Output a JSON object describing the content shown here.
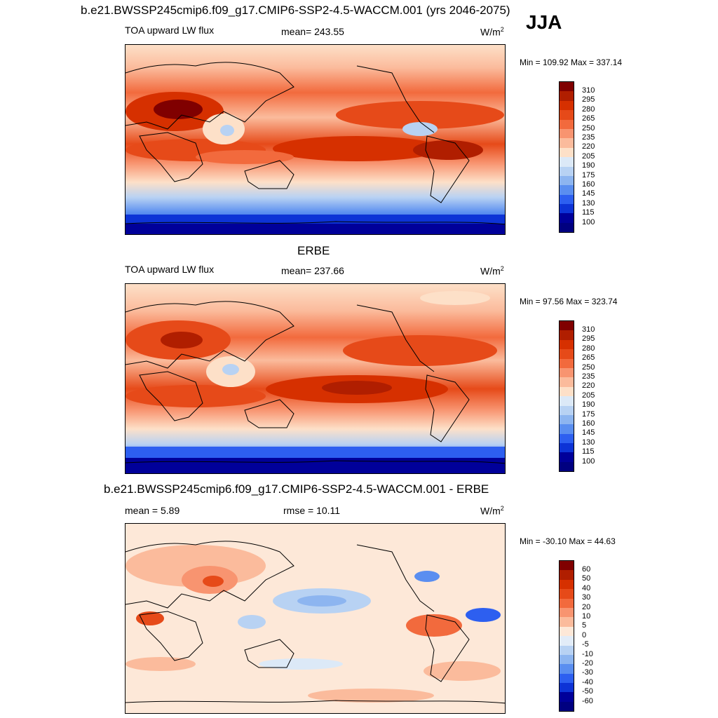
{
  "header": {
    "title": "b.e21.BWSSP245cmip6.f09_g17.CMIP6-SSP2-4.5-WACCM.001 (yrs 2046-2075)",
    "season": "JJA"
  },
  "panel1": {
    "variable": "TOA upward LW flux",
    "stat": "mean= 243.55",
    "units": "W/m",
    "units_sup": "2",
    "minmax": "Min = 109.92 Max = 337.14"
  },
  "panel2": {
    "title": "ERBE",
    "variable": "TOA upward LW flux",
    "stat": "mean= 237.66",
    "units": "W/m",
    "units_sup": "2",
    "minmax": "Min =  97.56 Max = 323.74"
  },
  "panel3": {
    "title": "b.e21.BWSSP245cmip6.f09_g17.CMIP6-SSP2-4.5-WACCM.001 - ERBE",
    "stat_mean": "mean =   5.89",
    "stat_rmse": "rmse =  10.11",
    "units": "W/m",
    "units_sup": "2",
    "minmax": "Min = -30.10 Max =  44.63"
  },
  "colorbar_abs": {
    "labels": [
      "310",
      "295",
      "280",
      "265",
      "250",
      "235",
      "220",
      "205",
      "190",
      "175",
      "160",
      "145",
      "130",
      "115",
      "100"
    ],
    "colors": [
      "#800000",
      "#b01e00",
      "#d63000",
      "#e64a19",
      "#f26a3d",
      "#f89470",
      "#fbbb9c",
      "#fde0c8",
      "#dce9f7",
      "#b8d2f3",
      "#8db5f0",
      "#5a8ef0",
      "#2d5ff0",
      "#0d33d6",
      "#00009a",
      "#000080"
    ]
  },
  "colorbar_diff": {
    "labels": [
      "60",
      "50",
      "40",
      "30",
      "20",
      "10",
      "5",
      "0",
      "-5",
      "-10",
      "-20",
      "-30",
      "-40",
      "-50",
      "-60"
    ],
    "colors": [
      "#800000",
      "#b01e00",
      "#d63000",
      "#e64a19",
      "#f26a3d",
      "#f89470",
      "#fbbb9c",
      "#fde8d8",
      "#e2ecf8",
      "#b8d2f3",
      "#8db5f0",
      "#5a8ef0",
      "#2d5ff0",
      "#0d33d6",
      "#00009a",
      "#000080"
    ]
  }
}
